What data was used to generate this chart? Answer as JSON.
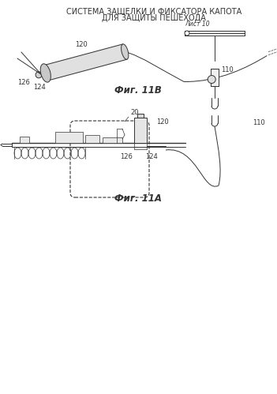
{
  "title_line1": "СИСТЕМА ЗАЩЕЛКИ И ФИКСАТОРА КАПОТА",
  "title_line2": "ДЛЯ ЗАЩИТЫ ПЕШЕХОДА",
  "title_line3": "Лист 10",
  "fig_label_A": "Фиг. 11А",
  "fig_label_B": "Фиг. 11В",
  "bg_color": "#ffffff",
  "lc": "#333333",
  "lc2": "#555555",
  "title_fontsize": 7.0,
  "label_fontsize": 6.0,
  "fig_label_fontsize": 8.5
}
